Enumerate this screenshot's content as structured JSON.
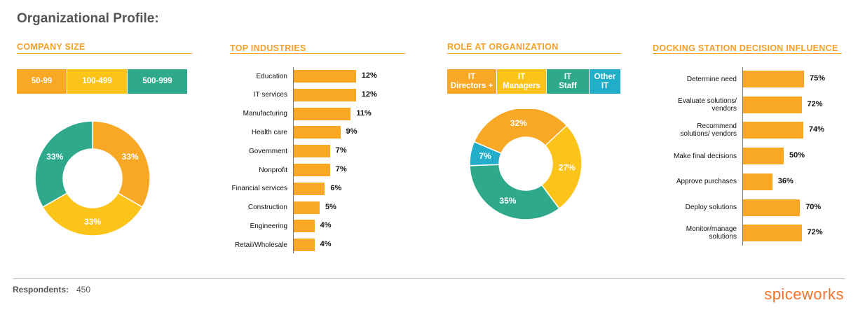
{
  "title": "Organizational Profile:",
  "footer": {
    "respondents_label": "Respondents:",
    "respondents_value": "450",
    "logo": "spiceworks"
  },
  "colors": {
    "orange": "#f9a825",
    "yellow": "#fcc419",
    "teal": "#2fa98c",
    "cyan": "#22aec9",
    "title_orange": "#f5a02a"
  },
  "chart_data": [
    {
      "type": "pie",
      "title": "COMPANY SIZE",
      "donut": true,
      "categories": [
        "50-99",
        "100-499",
        "500-999"
      ],
      "values": [
        33,
        33,
        33
      ],
      "labels": [
        "33%",
        "33%",
        "33%"
      ],
      "colors": [
        "#f9a825",
        "#fcc419",
        "#2fa98c"
      ]
    },
    {
      "type": "bar",
      "title": "TOP INDUSTRIES",
      "orientation": "horizontal",
      "categories": [
        "Education",
        "IT services",
        "Manufacturing",
        "Health care",
        "Government",
        "Nonprofit",
        "Financial services",
        "Construction",
        "Engineering",
        "Retail/Wholesale"
      ],
      "values": [
        12,
        12,
        11,
        9,
        7,
        7,
        6,
        5,
        4,
        4
      ],
      "labels": [
        "12%",
        "12%",
        "11%",
        "9%",
        "7%",
        "7%",
        "6%",
        "5%",
        "4%",
        "4%"
      ]
    },
    {
      "type": "pie",
      "title": "ROLE AT ORGANIZATION",
      "donut": true,
      "categories": [
        "IT Directors +",
        "IT Managers",
        "IT Staff",
        "Other IT"
      ],
      "legend_lines": [
        [
          "IT",
          "Directors +"
        ],
        [
          "IT",
          "Managers"
        ],
        [
          "IT",
          "Staff"
        ],
        [
          "Other",
          "IT"
        ]
      ],
      "values": [
        32,
        27,
        35,
        7
      ],
      "labels": [
        "32%",
        "27%",
        "35%",
        "7%"
      ],
      "colors": [
        "#f9a825",
        "#fcc419",
        "#2fa98c",
        "#22aec9"
      ]
    },
    {
      "type": "bar",
      "title": "DOCKING STATION DECISION INFLUENCE",
      "orientation": "horizontal",
      "categories": [
        "Determine need",
        "Evaluate solutions/ vendors",
        "Recommend solutions/ vendors",
        "Make final decisions",
        "Approve purchases",
        "Deploy solutions",
        "Monitor/manage solutions"
      ],
      "category_lines": [
        [
          "Determine need"
        ],
        [
          "Evaluate solutions/",
          "vendors"
        ],
        [
          "Recommend",
          "solutions/ vendors"
        ],
        [
          "Make final decisions"
        ],
        [
          "Approve purchases"
        ],
        [
          "Deploy solutions"
        ],
        [
          "Monitor/manage",
          "solutions"
        ]
      ],
      "values": [
        75,
        72,
        74,
        50,
        36,
        70,
        72
      ],
      "labels": [
        "75%",
        "72%",
        "74%",
        "50%",
        "36%",
        "70%",
        "72%"
      ]
    }
  ]
}
